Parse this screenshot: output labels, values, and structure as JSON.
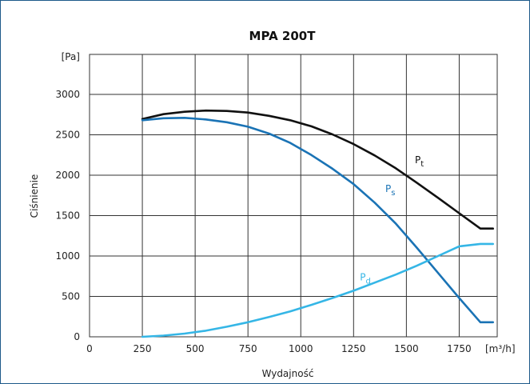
{
  "chart_data": {
    "type": "line",
    "title": "MPA 200T",
    "xlabel": "Wydajność",
    "ylabel": "Ciśnienie",
    "y_unit": "[Pa]",
    "x_unit": "[m³/h]",
    "xlim": [
      0,
      1930
    ],
    "ylim": [
      0,
      3000
    ],
    "x_ticks": [
      0,
      250,
      500,
      750,
      1000,
      1250,
      1500,
      1750
    ],
    "y_ticks": [
      0,
      500,
      1000,
      1500,
      2000,
      2500,
      3000
    ],
    "grid": true,
    "series": [
      {
        "name": "Pt",
        "label_main": "P",
        "label_sub": "t",
        "color": "#111111",
        "label_at": [
          1540,
          2150
        ],
        "x": [
          250,
          350,
          450,
          550,
          650,
          750,
          850,
          950,
          1050,
          1150,
          1250,
          1350,
          1450,
          1550,
          1650,
          1750,
          1850,
          1930
        ],
        "y": [
          2695,
          2755,
          2785,
          2800,
          2795,
          2775,
          2735,
          2680,
          2605,
          2505,
          2385,
          2245,
          2085,
          1905,
          1720,
          1530,
          1340,
          1340
        ]
      },
      {
        "name": "Ps",
        "label_main": "P",
        "label_sub": "s",
        "color": "#1a73b5",
        "label_at": [
          1400,
          1790
        ],
        "x": [
          250,
          350,
          450,
          550,
          650,
          750,
          850,
          950,
          1050,
          1150,
          1250,
          1350,
          1450,
          1550,
          1650,
          1750,
          1850,
          1930
        ],
        "y": [
          2680,
          2705,
          2710,
          2690,
          2655,
          2600,
          2515,
          2400,
          2250,
          2080,
          1890,
          1660,
          1400,
          1100,
          790,
          480,
          180,
          180
        ]
      },
      {
        "name": "Pd",
        "label_main": "P",
        "label_sub": "d",
        "color": "#35b6e6",
        "label_at": [
          1280,
          700
        ],
        "x": [
          250,
          350,
          450,
          550,
          650,
          750,
          850,
          950,
          1050,
          1150,
          1250,
          1350,
          1450,
          1550,
          1650,
          1750,
          1850,
          1930
        ],
        "y": [
          0,
          15,
          40,
          75,
          125,
          180,
          245,
          315,
          395,
          480,
          570,
          670,
          770,
          880,
          1000,
          1120,
          1150,
          1150
        ]
      }
    ]
  }
}
